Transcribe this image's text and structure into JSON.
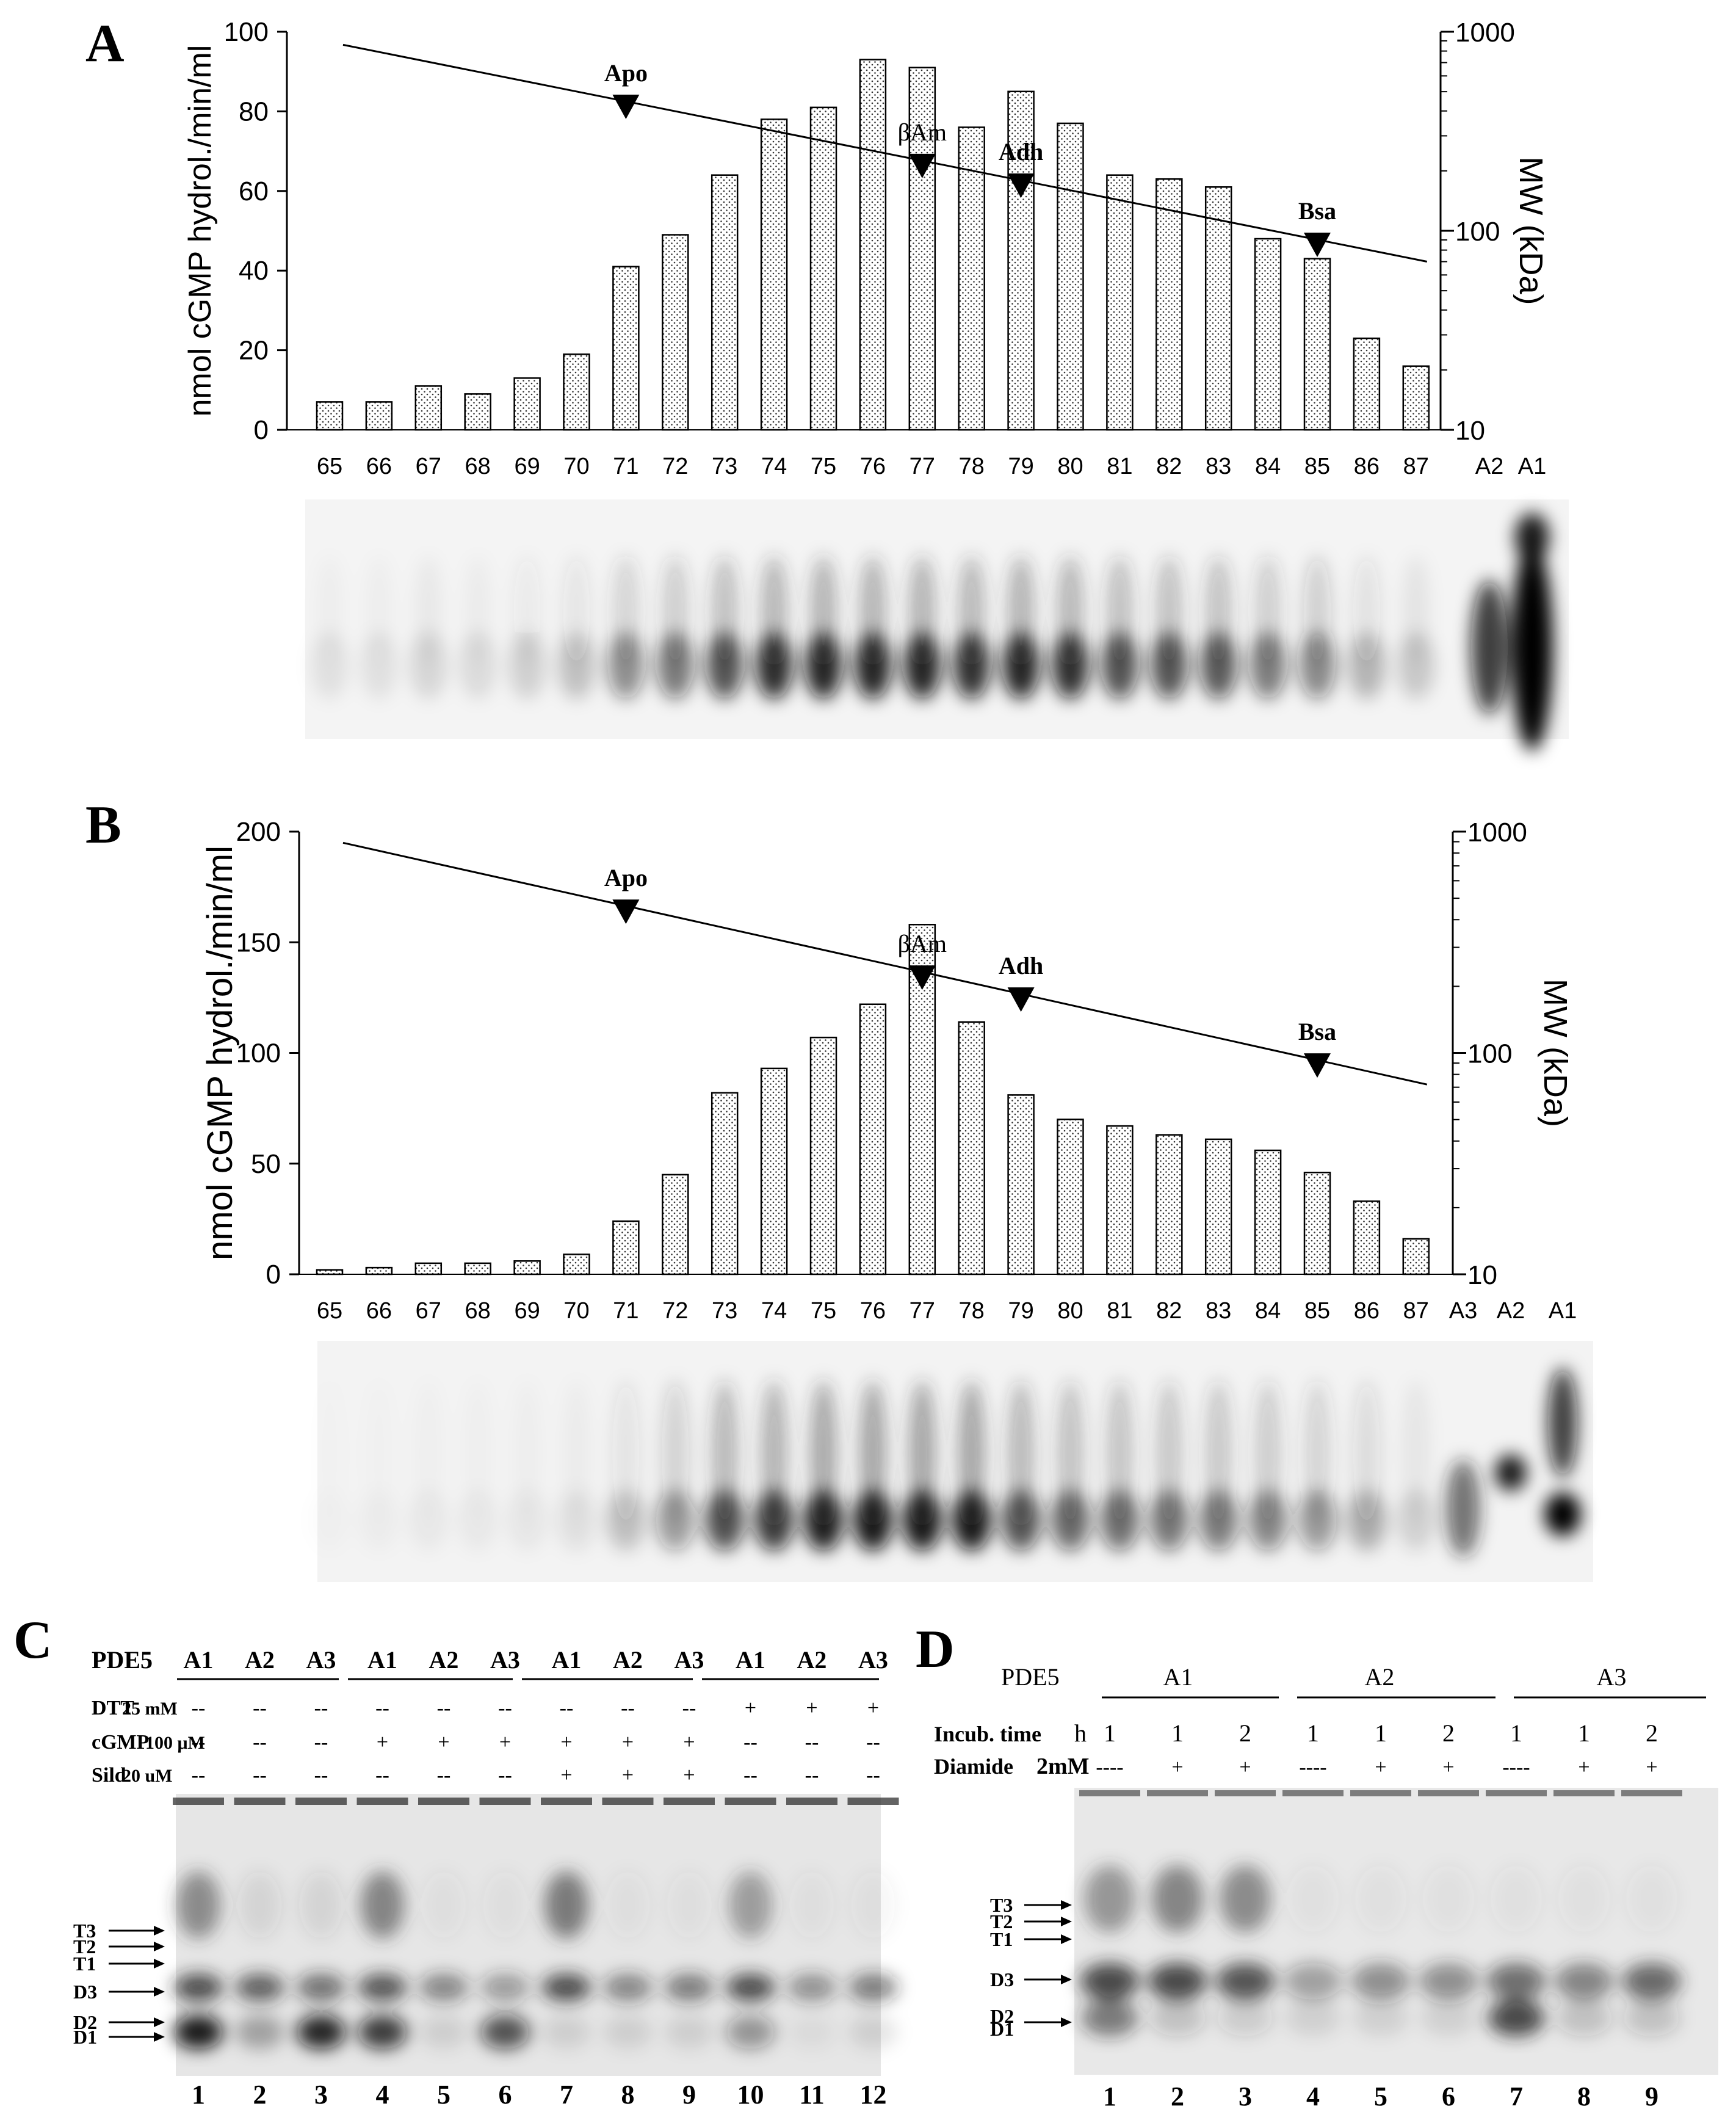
{
  "panels": {
    "A": {
      "letter": "A"
    },
    "B": {
      "letter": "B"
    },
    "C": {
      "letter": "C"
    },
    "D": {
      "letter": "D"
    }
  },
  "chart_data": [
    {
      "type": "bar",
      "panel": "A",
      "categories": [
        "65",
        "66",
        "67",
        "68",
        "69",
        "70",
        "71",
        "72",
        "73",
        "74",
        "75",
        "76",
        "77",
        "78",
        "79",
        "80",
        "81",
        "82",
        "83",
        "84",
        "85",
        "86",
        "87"
      ],
      "values": [
        7,
        7,
        11,
        9,
        13,
        19,
        41,
        49,
        64,
        78,
        81,
        93,
        91,
        76,
        85,
        77,
        64,
        63,
        61,
        48,
        43,
        23,
        16
      ],
      "ylabel": "nmol cGMP hydrol./min/ml",
      "ylim": [
        0,
        100
      ],
      "yticks": [
        "0",
        "20",
        "40",
        "60",
        "80",
        "100"
      ],
      "y2label": "MW (kDa)",
      "y2ticks": [
        "10",
        "100",
        "1000"
      ],
      "extra_ticks": [
        "A2",
        "A1"
      ],
      "calibration_line": {
        "start_y2": 860,
        "end_y2": 70
      },
      "markers": [
        {
          "label": "Apo",
          "fraction": "71",
          "mw": 470
        },
        {
          "label": "βAm",
          "fraction": "77",
          "mw": 200
        },
        {
          "label": "Adh",
          "fraction": "79",
          "mw": 150
        },
        {
          "label": "Bsa",
          "fraction": "85",
          "mw": 66
        }
      ]
    },
    {
      "type": "bar",
      "panel": "B",
      "categories": [
        "65",
        "66",
        "67",
        "68",
        "69",
        "70",
        "71",
        "72",
        "73",
        "74",
        "75",
        "76",
        "77",
        "78",
        "79",
        "80",
        "81",
        "82",
        "83",
        "84",
        "85",
        "86",
        "87"
      ],
      "values": [
        2,
        3,
        5,
        5,
        6,
        9,
        24,
        45,
        82,
        93,
        107,
        122,
        158,
        114,
        81,
        70,
        67,
        63,
        61,
        56,
        46,
        33,
        16
      ],
      "ylabel": "nmol cGMP hydrol./min/ml",
      "ylim": [
        0,
        200
      ],
      "yticks": [
        "0",
        "50",
        "100",
        "150",
        "200"
      ],
      "y2label": "MW (kDa)",
      "y2ticks": [
        "10",
        "100",
        "1000"
      ],
      "extra_ticks": [
        "A3",
        "A2",
        "A1"
      ],
      "calibration_line": {
        "start_y2": 890,
        "end_y2": 72
      },
      "markers": [
        {
          "label": "Apo",
          "fraction": "71",
          "mw": 470
        },
        {
          "label": "βAm",
          "fraction": "77",
          "mw": 200
        },
        {
          "label": "Adh",
          "fraction": "79",
          "mw": 150
        },
        {
          "label": "Bsa",
          "fraction": "85",
          "mw": 66
        }
      ]
    }
  ],
  "gel_c": {
    "pde5_label": "PDE5",
    "groups": [
      [
        "A1",
        "A2",
        "A3"
      ],
      [
        "A1",
        "A2",
        "A3"
      ],
      [
        "A1",
        "A2",
        "A3"
      ],
      [
        "A1",
        "A2",
        "A3"
      ]
    ],
    "conditions": [
      {
        "name": "DTT",
        "conc": "25 mM",
        "values": [
          "--",
          "--",
          "--",
          "--",
          "--",
          "--",
          "--",
          "--",
          "--",
          "+",
          "+",
          "+"
        ]
      },
      {
        "name": "cGMP",
        "conc": "100 μM",
        "values": [
          "--",
          "--",
          "--",
          "+",
          "+",
          "+",
          "+",
          "+",
          "+",
          "--",
          "--",
          "--"
        ]
      },
      {
        "name": "Sild",
        "conc": "20 uM",
        "values": [
          "--",
          "--",
          "--",
          "--",
          "--",
          "--",
          "+",
          "+",
          "+",
          "--",
          "--",
          "--"
        ]
      }
    ],
    "band_labels": [
      "T3",
      "T2",
      "T1",
      "D3",
      "D2",
      "D1"
    ],
    "lanes": [
      "1",
      "2",
      "3",
      "4",
      "5",
      "6",
      "7",
      "8",
      "9",
      "10",
      "11",
      "12"
    ]
  },
  "gel_d": {
    "pde5_label": "PDE5",
    "groups": [
      "A1",
      "A2",
      "A3"
    ],
    "incub_label": "Incub. time",
    "incub_unit": "h",
    "incub_values": [
      "1",
      "1",
      "2",
      "1",
      "1",
      "2",
      "1",
      "1",
      "2"
    ],
    "diamide_label": "Diamide",
    "diamide_conc": "2mM",
    "diamide_values": [
      "----",
      "+",
      "+",
      "----",
      "+",
      "+",
      "----",
      "+",
      "+"
    ],
    "band_labels": [
      "T3",
      "T2",
      "T1",
      "D3",
      "D2",
      "D1"
    ],
    "lanes": [
      "1",
      "2",
      "3",
      "4",
      "5",
      "6",
      "7",
      "8",
      "9"
    ]
  }
}
